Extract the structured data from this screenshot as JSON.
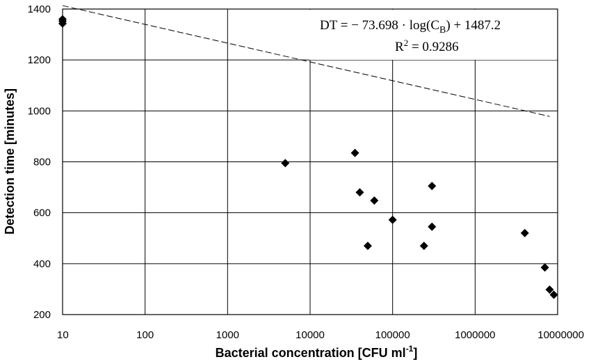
{
  "chart_data": {
    "type": "scatter",
    "title": "",
    "xlabel": "Bacterial concentration [CFU ml",
    "xlabel_sup": "-1",
    "xlabel_close": "]",
    "ylabel": "Detection time [minutes]",
    "x_scale": "log",
    "xlim": [
      10,
      10000000
    ],
    "ylim": [
      200,
      1400
    ],
    "x_ticks": [
      10,
      100,
      1000,
      10000,
      100000,
      1000000,
      10000000
    ],
    "x_tick_labels": [
      "10",
      "100",
      "1000",
      "10000",
      "100000",
      "1000000",
      "10000000"
    ],
    "y_ticks": [
      200,
      400,
      600,
      800,
      1000,
      1200,
      1400
    ],
    "y_tick_labels": [
      "200",
      "400",
      "600",
      "800",
      "1000",
      "1200",
      "1400"
    ],
    "grid": true,
    "marker": "diamond",
    "points": [
      {
        "x": 10,
        "y": 1360
      },
      {
        "x": 10,
        "y": 1352
      },
      {
        "x": 10,
        "y": 1343
      },
      {
        "x": 5000,
        "y": 795
      },
      {
        "x": 35000,
        "y": 835
      },
      {
        "x": 40000,
        "y": 680
      },
      {
        "x": 50000,
        "y": 470
      },
      {
        "x": 60000,
        "y": 648
      },
      {
        "x": 100000,
        "y": 572
      },
      {
        "x": 240000,
        "y": 470
      },
      {
        "x": 300000,
        "y": 705
      },
      {
        "x": 300000,
        "y": 545
      },
      {
        "x": 4000000,
        "y": 520
      },
      {
        "x": 7000000,
        "y": 385
      },
      {
        "x": 8000000,
        "y": 298
      },
      {
        "x": 9000000,
        "y": 278
      }
    ],
    "trendline": {
      "slope": -73.698,
      "intercept": 1487.2,
      "x_range": [
        10,
        8000000
      ]
    },
    "equation_line1": "DT = − 73.698 · log(C",
    "equation_sub": "B",
    "equation_line1_end": ") + 1487.2",
    "equation_line2": "R",
    "equation_line2_sup": "2",
    "equation_line2_end": " = 0.9286"
  }
}
